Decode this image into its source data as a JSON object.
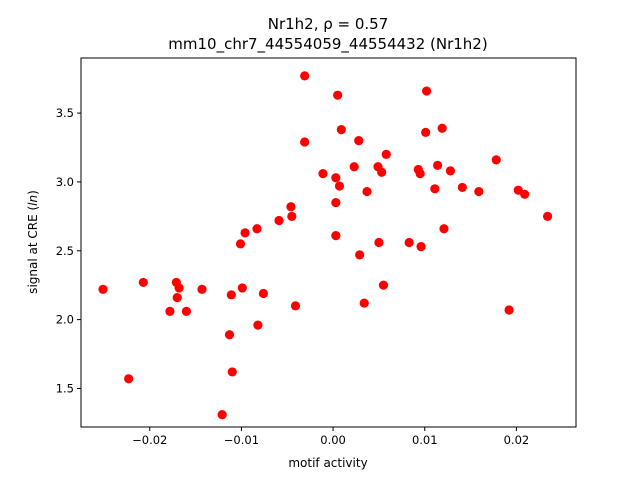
{
  "chart_data": {
    "type": "scatter",
    "title_line1": "Nr1h2, ρ = 0.57",
    "title_line2": "mm10_chr7_44554059_44554432 (Nr1h2)",
    "xlabel": "motif activity",
    "ylabel": "signal at CRE (ln)",
    "xlim": [
      -0.0275,
      0.0265
    ],
    "ylim": [
      1.22,
      3.9
    ],
    "xticks": [
      -0.02,
      -0.01,
      0.0,
      0.01,
      0.02
    ],
    "xtick_labels": [
      "−0.02",
      "−0.01",
      "0.00",
      "0.01",
      "0.02"
    ],
    "yticks": [
      1.5,
      2.0,
      2.5,
      3.0,
      3.5
    ],
    "ytick_labels": [
      "1.5",
      "2.0",
      "2.5",
      "3.0",
      "3.5"
    ],
    "grid": false,
    "marker_color": "#ff0000",
    "series": [
      {
        "points": [
          [
            -0.0251,
            2.22
          ],
          [
            -0.0223,
            1.57
          ],
          [
            -0.0207,
            2.27
          ],
          [
            -0.0178,
            2.06
          ],
          [
            -0.0171,
            2.27
          ],
          [
            -0.017,
            2.16
          ],
          [
            -0.0168,
            2.23
          ],
          [
            -0.016,
            2.06
          ],
          [
            -0.0143,
            2.22
          ],
          [
            -0.0121,
            1.31
          ],
          [
            -0.0113,
            1.89
          ],
          [
            -0.0111,
            2.18
          ],
          [
            -0.011,
            1.62
          ],
          [
            -0.0101,
            2.55
          ],
          [
            -0.0099,
            2.23
          ],
          [
            -0.0096,
            2.63
          ],
          [
            -0.0083,
            2.66
          ],
          [
            -0.0082,
            1.96
          ],
          [
            -0.0076,
            2.19
          ],
          [
            -0.0059,
            2.72
          ],
          [
            -0.0046,
            2.82
          ],
          [
            -0.0045,
            2.75
          ],
          [
            -0.0041,
            2.1
          ],
          [
            -0.0031,
            3.77
          ],
          [
            -0.0031,
            3.29
          ],
          [
            -0.0011,
            3.06
          ],
          [
            0.0003,
            3.03
          ],
          [
            0.0003,
            2.85
          ],
          [
            0.0003,
            2.61
          ],
          [
            0.0005,
            3.63
          ],
          [
            0.0007,
            2.97
          ],
          [
            0.0009,
            3.38
          ],
          [
            0.0023,
            3.11
          ],
          [
            0.0028,
            3.3
          ],
          [
            0.0029,
            2.47
          ],
          [
            0.0034,
            2.12
          ],
          [
            0.0037,
            2.93
          ],
          [
            0.0049,
            3.11
          ],
          [
            0.005,
            2.56
          ],
          [
            0.0053,
            3.07
          ],
          [
            0.0055,
            2.25
          ],
          [
            0.0058,
            3.2
          ],
          [
            0.0083,
            2.56
          ],
          [
            0.0093,
            3.09
          ],
          [
            0.0095,
            3.06
          ],
          [
            0.0096,
            2.53
          ],
          [
            0.0101,
            3.36
          ],
          [
            0.0102,
            3.66
          ],
          [
            0.0111,
            2.95
          ],
          [
            0.0114,
            3.12
          ],
          [
            0.0119,
            3.39
          ],
          [
            0.0121,
            2.66
          ],
          [
            0.0128,
            3.08
          ],
          [
            0.0141,
            2.96
          ],
          [
            0.0159,
            2.93
          ],
          [
            0.0178,
            3.16
          ],
          [
            0.0192,
            2.07
          ],
          [
            0.0202,
            2.94
          ],
          [
            0.0209,
            2.91
          ],
          [
            0.0234,
            2.75
          ]
        ]
      }
    ]
  }
}
